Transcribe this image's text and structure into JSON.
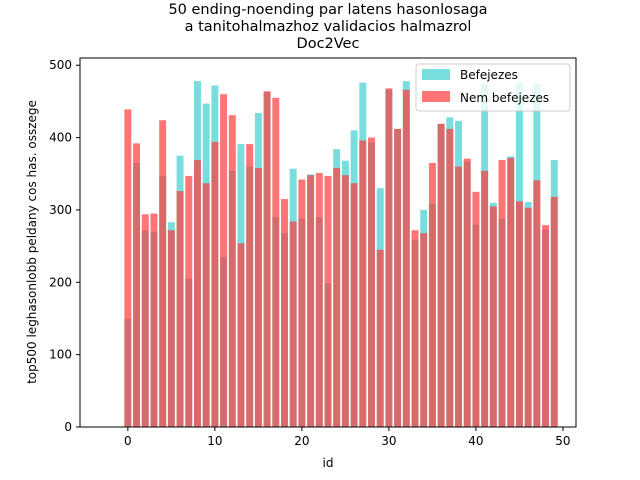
{
  "chart_data": {
    "type": "bar",
    "title_lines": [
      "50 ending-noending par latens hasonlosaga",
      "a tanitohalmazhoz validacios halmazrol",
      "Doc2Vec"
    ],
    "xlabel": "id",
    "ylabel": "top500 leghasonlobb peldany cos has. osszege",
    "xlim": [
      -5.5,
      51.5
    ],
    "ylim": [
      0,
      510
    ],
    "xticks": [
      0,
      10,
      20,
      30,
      40,
      50
    ],
    "yticks": [
      0,
      100,
      200,
      300,
      400,
      500
    ],
    "grid": false,
    "legend_position": "top-right",
    "x": [
      0,
      1,
      2,
      3,
      4,
      5,
      6,
      7,
      8,
      9,
      10,
      11,
      12,
      13,
      14,
      15,
      16,
      17,
      18,
      19,
      20,
      21,
      22,
      23,
      24,
      25,
      26,
      27,
      28,
      29,
      30,
      31,
      32,
      33,
      34,
      35,
      36,
      37,
      38,
      39,
      40,
      41,
      42,
      43,
      44,
      45,
      46,
      47,
      48,
      49
    ],
    "series": [
      {
        "name": "Befejezes",
        "color": "#40cfcf",
        "values": [
          150,
          365,
          272,
          270,
          347,
          283,
          375,
          205,
          478,
          447,
          472,
          235,
          354,
          391,
          360,
          434,
          463,
          290,
          268,
          357,
          288,
          349,
          290,
          199,
          384,
          368,
          410,
          476,
          393,
          330,
          466,
          412,
          478,
          259,
          300,
          309,
          419,
          428,
          423,
          367,
          280,
          474,
          310,
          288,
          374,
          476,
          311,
          474,
          273,
          369
        ]
      },
      {
        "name": "Nem befejezes",
        "color": "#ff3b3b",
        "values": [
          439,
          392,
          294,
          295,
          424,
          272,
          326,
          347,
          369,
          337,
          394,
          460,
          431,
          254,
          391,
          358,
          464,
          455,
          315,
          284,
          342,
          348,
          351,
          347,
          358,
          348,
          337,
          396,
          400,
          245,
          468,
          412,
          466,
          272,
          268,
          365,
          419,
          412,
          360,
          371,
          325,
          354,
          305,
          369,
          372,
          312,
          303,
          341,
          279,
          318
        ]
      }
    ]
  }
}
